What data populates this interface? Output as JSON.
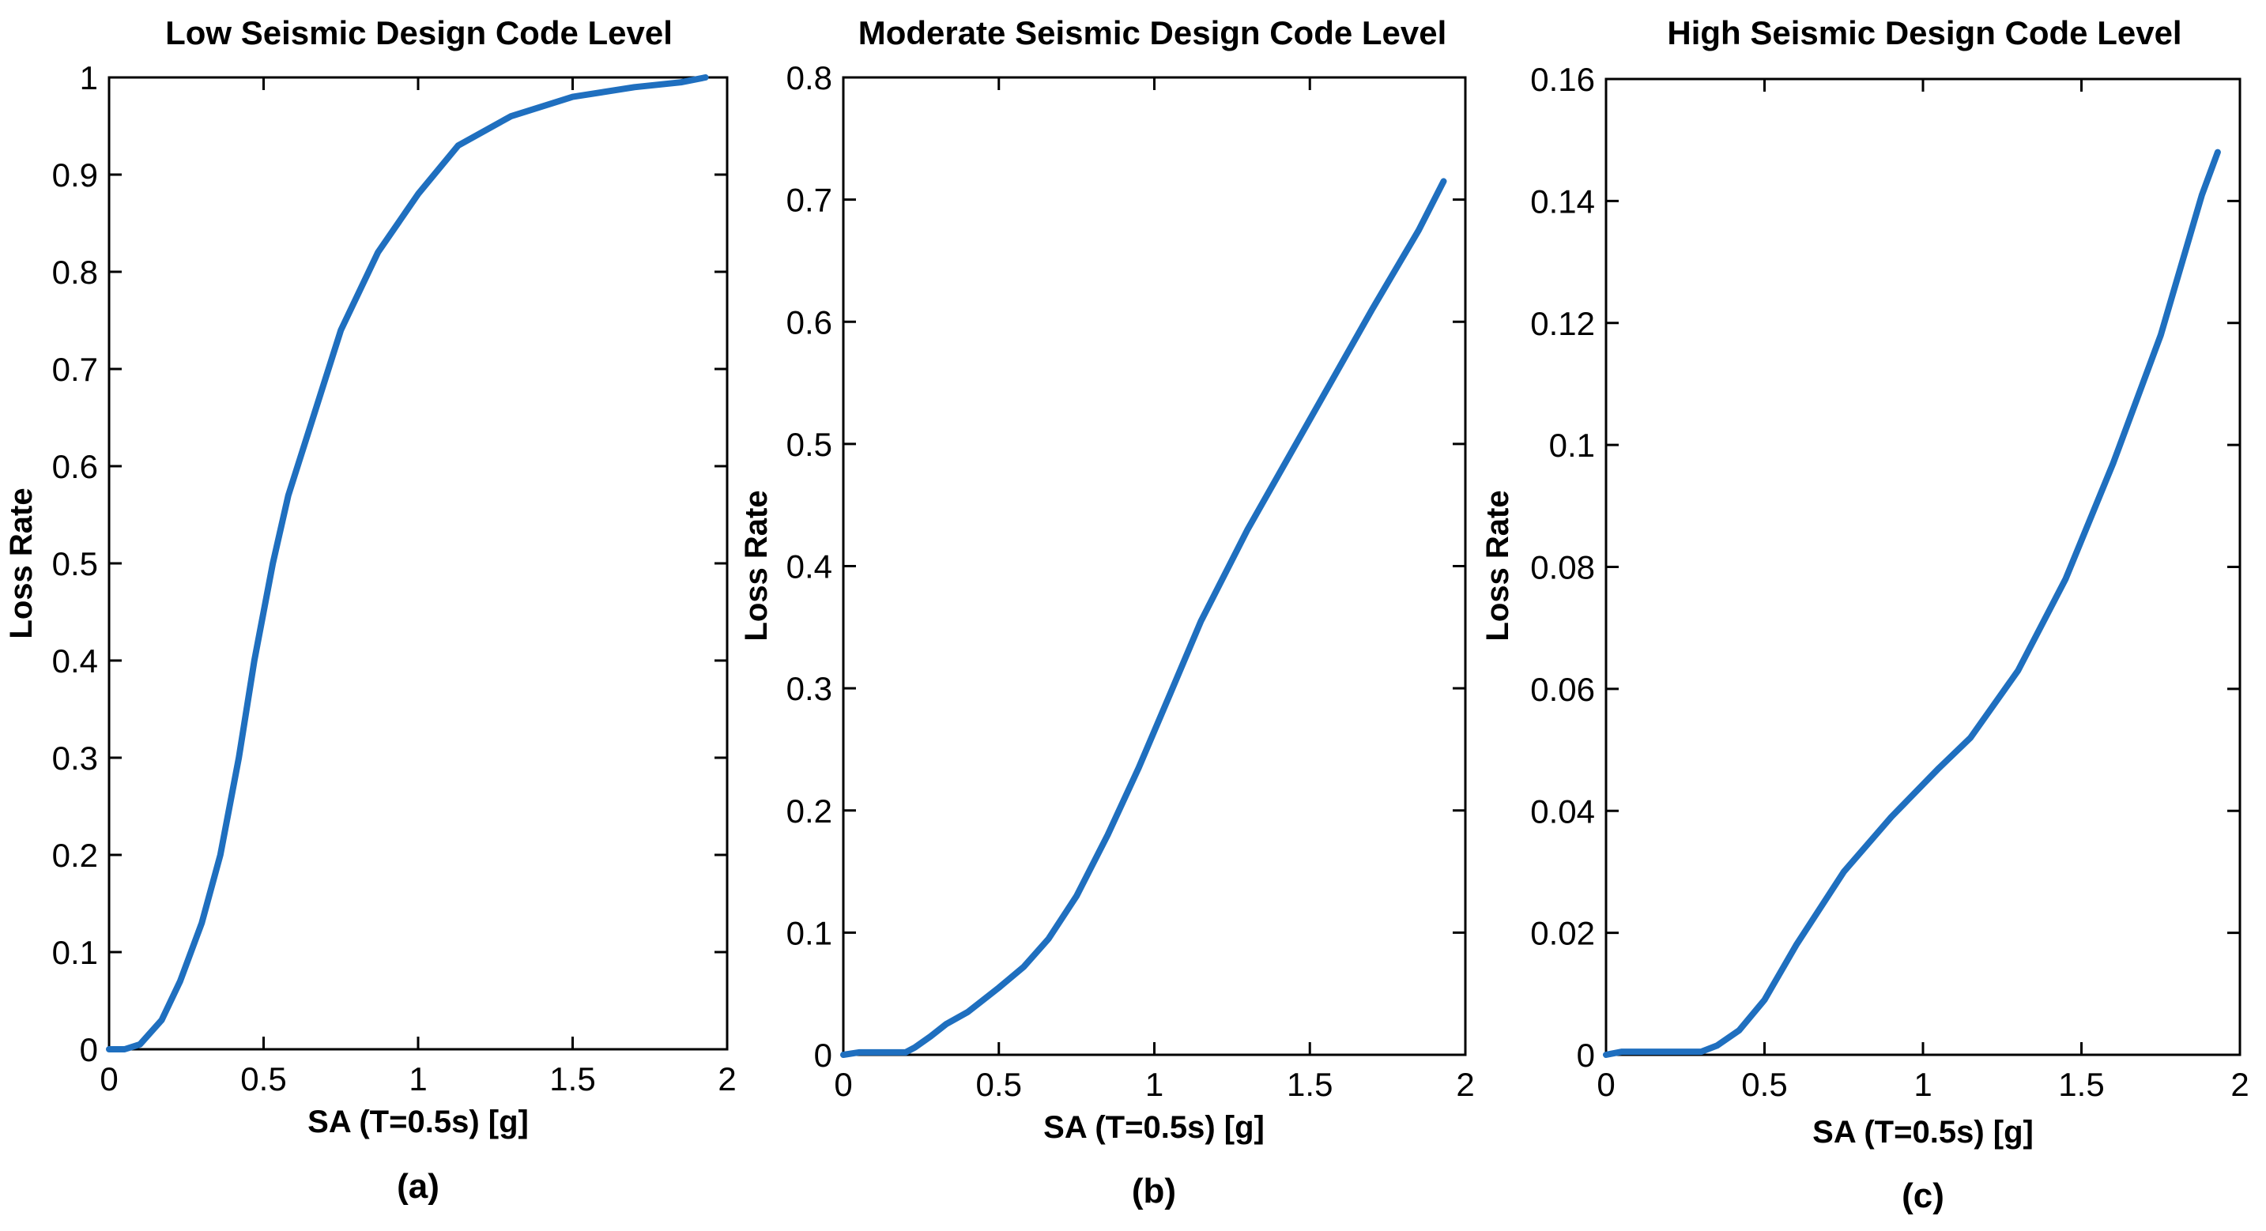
{
  "colors": {
    "line": "#1f6fbf",
    "axes": "#000000",
    "background": "#ffffff"
  },
  "chart_data": [
    {
      "type": "line",
      "panel_label": "(a)",
      "title": "Low Seismic Design Code Level",
      "xlabel": "SA (T=0.5s) [g]",
      "ylabel": "Loss Rate",
      "xlim": [
        0,
        2
      ],
      "ylim": [
        0,
        1
      ],
      "xticks": [
        0,
        0.5,
        1,
        1.5,
        2
      ],
      "xtick_labels": [
        "0",
        "0.5",
        "1",
        "1.5",
        "2"
      ],
      "yticks": [
        0,
        0.1,
        0.2,
        0.3,
        0.4,
        0.5,
        0.6,
        0.7,
        0.8,
        0.9,
        1
      ],
      "ytick_labels": [
        "0",
        "0.1",
        "0.2",
        "0.3",
        "0.4",
        "0.5",
        "0.6",
        "0.7",
        "0.8",
        "0.9",
        "1"
      ],
      "series": [
        {
          "name": "Loss Rate",
          "x": [
            0,
            0.05,
            0.1,
            0.17,
            0.23,
            0.3,
            0.36,
            0.42,
            0.47,
            0.53,
            0.58,
            0.66,
            0.75,
            0.87,
            1.0,
            1.13,
            1.3,
            1.5,
            1.7,
            1.85,
            1.93
          ],
          "y": [
            0,
            0,
            0.005,
            0.03,
            0.07,
            0.13,
            0.2,
            0.3,
            0.4,
            0.5,
            0.57,
            0.65,
            0.74,
            0.82,
            0.88,
            0.93,
            0.96,
            0.98,
            0.99,
            0.995,
            1.0
          ]
        }
      ]
    },
    {
      "type": "line",
      "panel_label": "(b)",
      "title": "Moderate Seismic Design Code Level",
      "xlabel": "SA (T=0.5s) [g]",
      "ylabel": "Loss Rate",
      "xlim": [
        0,
        2
      ],
      "ylim": [
        0,
        0.8
      ],
      "xticks": [
        0,
        0.5,
        1,
        1.5,
        2
      ],
      "xtick_labels": [
        "0",
        "0.5",
        "1",
        "1.5",
        "2"
      ],
      "yticks": [
        0,
        0.1,
        0.2,
        0.3,
        0.4,
        0.5,
        0.6,
        0.7,
        0.8
      ],
      "ytick_labels": [
        "0",
        "0.1",
        "0.2",
        "0.3",
        "0.4",
        "0.5",
        "0.6",
        "0.7",
        "0.8"
      ],
      "series": [
        {
          "name": "Loss Rate",
          "x": [
            0,
            0.05,
            0.2,
            0.23,
            0.28,
            0.33,
            0.4,
            0.5,
            0.58,
            0.66,
            0.75,
            0.85,
            0.95,
            1.05,
            1.15,
            1.3,
            1.5,
            1.7,
            1.85,
            1.93
          ],
          "y": [
            0,
            0.002,
            0.002,
            0.006,
            0.015,
            0.025,
            0.035,
            0.055,
            0.072,
            0.095,
            0.13,
            0.18,
            0.235,
            0.295,
            0.355,
            0.43,
            0.52,
            0.61,
            0.675,
            0.715
          ]
        }
      ]
    },
    {
      "type": "line",
      "panel_label": "(c)",
      "title": "High Seismic Design Code Level",
      "xlabel": "SA (T=0.5s) [g]",
      "ylabel": "Loss Rate",
      "xlim": [
        0,
        2
      ],
      "ylim": [
        0,
        0.16
      ],
      "xticks": [
        0,
        0.5,
        1,
        1.5,
        2
      ],
      "xtick_labels": [
        "0",
        "0.5",
        "1",
        "1.5",
        "2"
      ],
      "yticks": [
        0,
        0.02,
        0.04,
        0.06,
        0.08,
        0.1,
        0.12,
        0.14,
        0.16
      ],
      "ytick_labels": [
        "0",
        "0.02",
        "0.04",
        "0.06",
        "0.08",
        "0.1",
        "0.12",
        "0.14",
        "0.16"
      ],
      "series": [
        {
          "name": "Loss Rate",
          "x": [
            0,
            0.05,
            0.3,
            0.35,
            0.42,
            0.5,
            0.6,
            0.75,
            0.9,
            1.05,
            1.15,
            1.3,
            1.45,
            1.6,
            1.75,
            1.88,
            1.93
          ],
          "y": [
            0,
            0.0005,
            0.0005,
            0.0015,
            0.004,
            0.009,
            0.018,
            0.03,
            0.039,
            0.047,
            0.052,
            0.063,
            0.078,
            0.097,
            0.118,
            0.141,
            0.148
          ]
        }
      ]
    }
  ]
}
